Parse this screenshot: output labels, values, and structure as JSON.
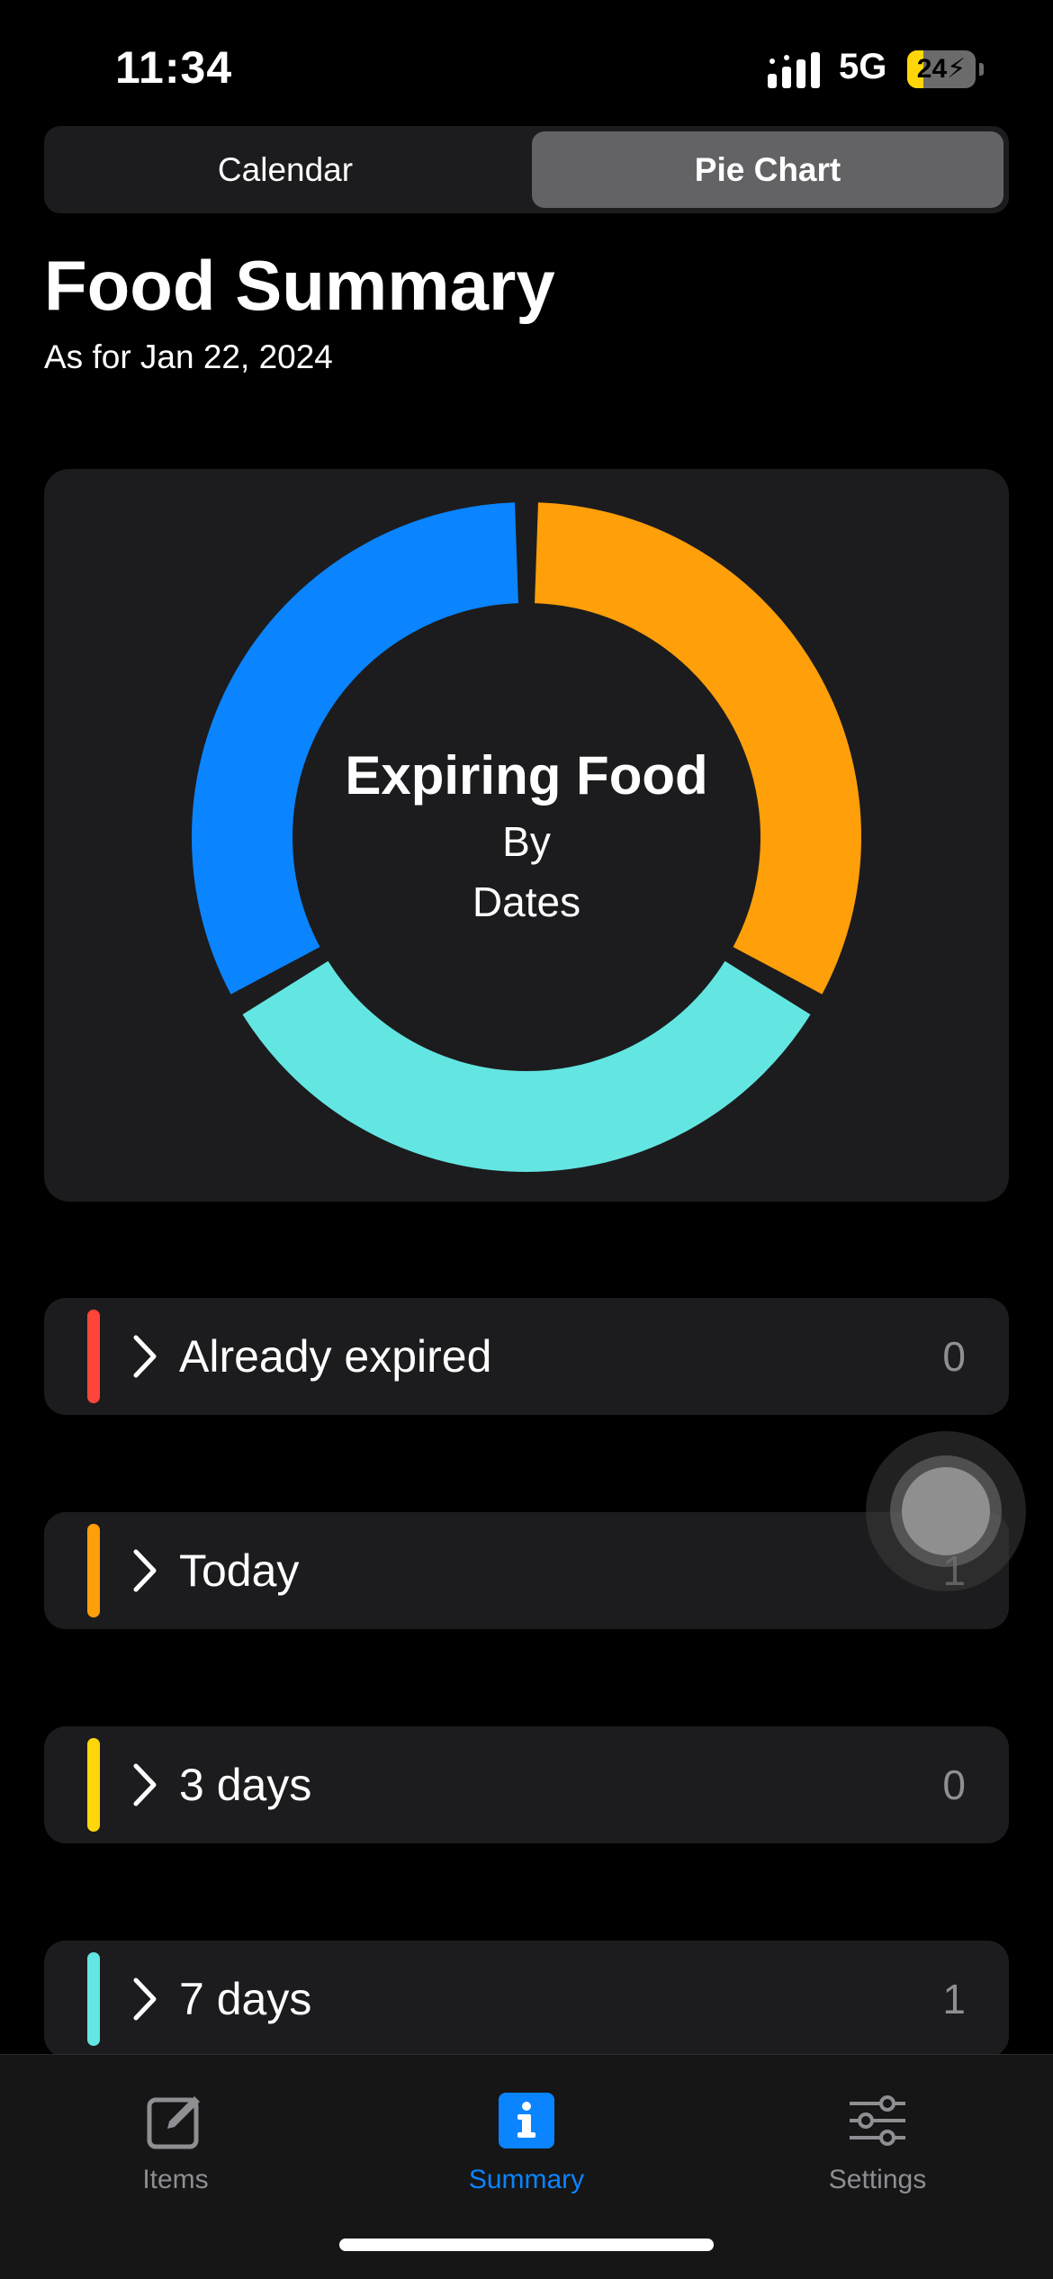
{
  "status_bar": {
    "time": "11:34",
    "network": "5G",
    "battery_percent": 24,
    "battery_text": "24",
    "charging": true
  },
  "segmented": {
    "options": [
      "Calendar",
      "Pie Chart"
    ],
    "selected_index": 1
  },
  "header": {
    "title": "Food Summary",
    "subtitle": "As for Jan 22, 2024"
  },
  "chart_center": {
    "title": "Expiring Food",
    "line1": "By",
    "line2": "Dates"
  },
  "chart_data": {
    "type": "pie",
    "categories": [
      "Already expired",
      "Today",
      "3 days",
      "7 days"
    ],
    "values": [
      0,
      1,
      0,
      1
    ],
    "colors": [
      "#ff453a",
      "#ff9f0a",
      "#ffd60a",
      "#63e6e2"
    ]
  },
  "categories": [
    {
      "label": "Already expired",
      "count": "0",
      "color": "#ff453a"
    },
    {
      "label": "Today",
      "count": "1",
      "color": "#ff9f0a"
    },
    {
      "label": "3 days",
      "count": "0",
      "color": "#ffd60a"
    },
    {
      "label": "7 days",
      "count": "1",
      "color": "#63e6e2"
    }
  ],
  "tabs": [
    {
      "label": "Items",
      "icon": "compose-icon"
    },
    {
      "label": "Summary",
      "icon": "info-icon"
    },
    {
      "label": "Settings",
      "icon": "sliders-icon"
    }
  ],
  "selected_tab": 1,
  "accent": "#0a84ff"
}
